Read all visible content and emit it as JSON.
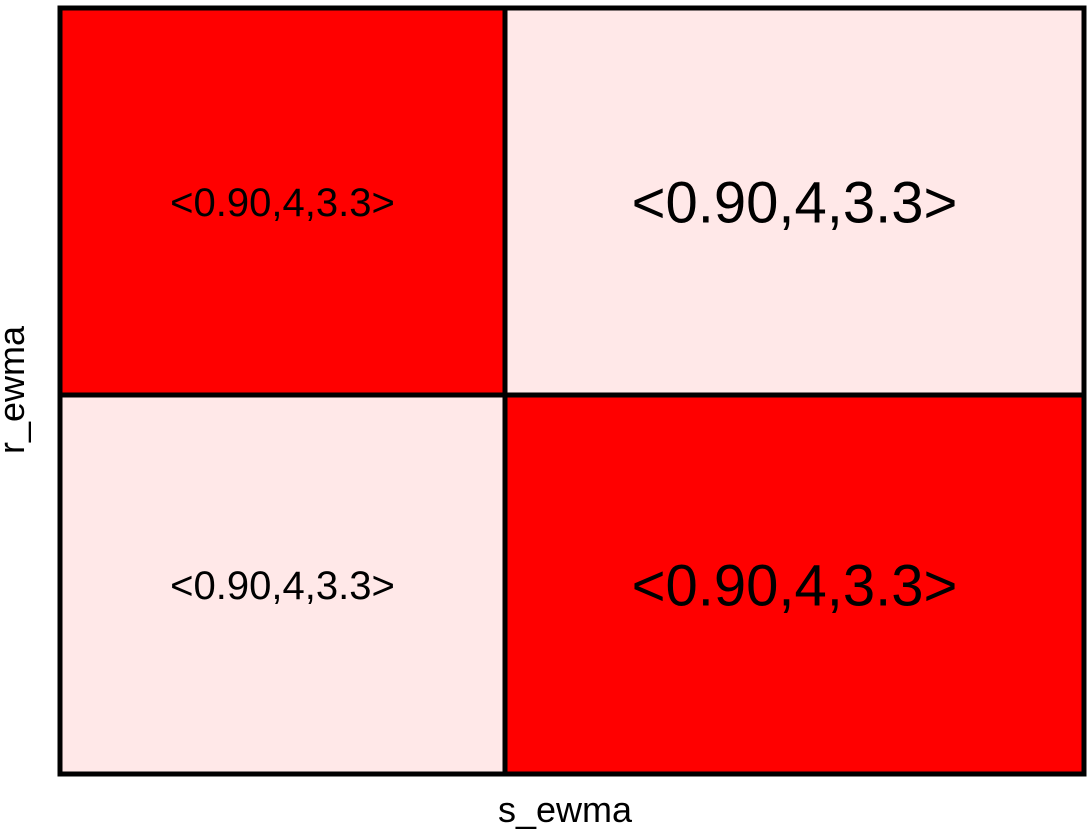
{
  "chart_data": {
    "type": "heatmap",
    "xlabel": "s_ewma",
    "ylabel": "r_ewma",
    "colors": {
      "high": "#ff0000",
      "low": "#ffe8e8",
      "border": "#000000"
    },
    "rows": [
      {
        "cells": [
          {
            "label": "<0.90,4,3.3>",
            "level": "high",
            "emphasis": "normal"
          },
          {
            "label": "<0.90,4,3.3>",
            "level": "low",
            "emphasis": "large"
          }
        ]
      },
      {
        "cells": [
          {
            "label": "<0.90,4,3.3>",
            "level": "low",
            "emphasis": "normal"
          },
          {
            "label": "<0.90,4,3.3>",
            "level": "high",
            "emphasis": "large"
          }
        ]
      }
    ]
  }
}
